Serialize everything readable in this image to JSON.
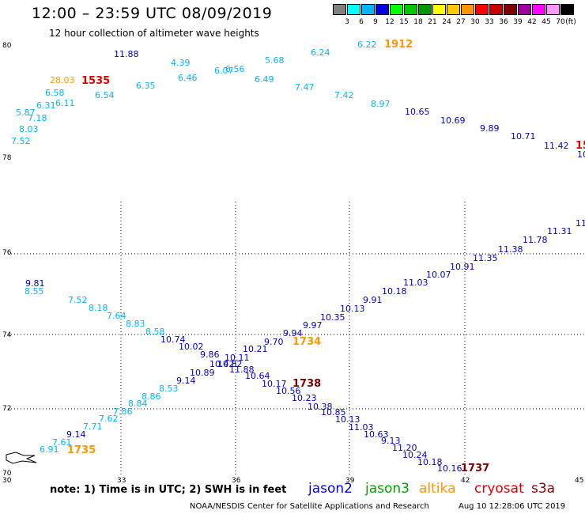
{
  "header": {
    "title": "12:00 – 23:59 UTC 08/09/2019",
    "subtitle": "12 hour collection of altimeter wave heights"
  },
  "legend": {
    "unit": "(ft)",
    "swatches": [
      {
        "label": "3",
        "color": "#808080"
      },
      {
        "label": "6",
        "color": "#00ffff"
      },
      {
        "label": "9",
        "color": "#00b4ff"
      },
      {
        "label": "12",
        "color": "#0000e0"
      },
      {
        "label": "15",
        "color": "#00ff00"
      },
      {
        "label": "18",
        "color": "#00c800"
      },
      {
        "label": "21",
        "color": "#009600"
      },
      {
        "label": "24",
        "color": "#ffff00"
      },
      {
        "label": "27",
        "color": "#ffc800"
      },
      {
        "label": "30",
        "color": "#ff9600"
      },
      {
        "label": "33",
        "color": "#ff0000"
      },
      {
        "label": "36",
        "color": "#c80000"
      },
      {
        "label": "39",
        "color": "#800000"
      },
      {
        "label": "42",
        "color": "#a000a0"
      },
      {
        "label": "45",
        "color": "#ff00ff"
      },
      {
        "label": "70",
        "color": "#ff96ff"
      },
      {
        "label": "",
        "color": "#000000"
      }
    ]
  },
  "axes": {
    "upper_panel": {
      "lat_labels": [
        {
          "value": "80"
        },
        {
          "value": "78"
        }
      ]
    },
    "lower_panel": {
      "lat_labels": [
        "76",
        "74",
        "72",
        "70"
      ],
      "lon_labels": [
        "30",
        "33",
        "36",
        "39",
        "42",
        "45"
      ]
    }
  },
  "colors": {
    "cyan_values": "#00b4ff",
    "blue_values": "#0000c8",
    "time_orange": "#ff9600",
    "time_red": "#e00000",
    "time_darkred": "#800000",
    "jason2": "#0000e0",
    "jason3": "#00a000",
    "altika": "#ff9600",
    "cryosat": "#e00000",
    "s3a": "#800000"
  },
  "upper_track": [
    {
      "t": "7.52",
      "c": "cyan"
    },
    {
      "t": "8.03",
      "c": "cyan"
    },
    {
      "t": "5.87",
      "c": "cyan"
    },
    {
      "t": "7.18",
      "c": "cyan"
    },
    {
      "t": "6.31",
      "c": "cyan"
    },
    {
      "t": "6.58",
      "c": "cyan"
    },
    {
      "t": "6.11",
      "c": "cyan"
    },
    {
      "t": "28.03",
      "c": "orange"
    },
    {
      "t": "1535",
      "c": "timered"
    },
    {
      "t": "6.54",
      "c": "cyan"
    },
    {
      "t": "11.88",
      "c": "blue"
    },
    {
      "t": "6.35",
      "c": "cyan"
    },
    {
      "t": "4.39",
      "c": "cyan"
    },
    {
      "t": "6.46",
      "c": "cyan"
    },
    {
      "t": "6.07",
      "c": "cyan"
    },
    {
      "t": "6.56",
      "c": "cyan"
    },
    {
      "t": "5.68",
      "c": "cyan"
    },
    {
      "t": "6.49",
      "c": "cyan"
    },
    {
      "t": "6.24",
      "c": "cyan"
    },
    {
      "t": "7.47",
      "c": "cyan"
    },
    {
      "t": "6.22",
      "c": "cyan"
    },
    {
      "t": "1912",
      "c": "timeorange"
    },
    {
      "t": "7.42",
      "c": "cyan"
    },
    {
      "t": "8.97",
      "c": "cyan"
    },
    {
      "t": "10.65",
      "c": "blue"
    },
    {
      "t": "10.69",
      "c": "blue"
    },
    {
      "t": "9.89",
      "c": "blue"
    },
    {
      "t": "10.71",
      "c": "blue"
    },
    {
      "t": "11.42",
      "c": "blue"
    },
    {
      "t": "15",
      "c": "timered"
    },
    {
      "t": "10",
      "c": "blue"
    }
  ],
  "lower_tracks": [
    {
      "t": "9.81",
      "c": "blue"
    },
    {
      "t": "8.55",
      "c": "cyan"
    },
    {
      "t": "7.52",
      "c": "cyan"
    },
    {
      "t": "8.18",
      "c": "cyan"
    },
    {
      "t": "7.64",
      "c": "cyan"
    },
    {
      "t": "8.83",
      "c": "cyan"
    },
    {
      "t": "8.58",
      "c": "cyan"
    },
    {
      "t": "10.74",
      "c": "blue"
    },
    {
      "t": "10.02",
      "c": "blue"
    },
    {
      "t": "9.86",
      "c": "blue"
    },
    {
      "t": "10.11",
      "c": "blue"
    },
    {
      "t": "10.42",
      "c": "blue"
    },
    {
      "t": "10.82",
      "c": "blue"
    },
    {
      "t": "11.88",
      "c": "blue"
    },
    {
      "t": "10.21",
      "c": "blue"
    },
    {
      "t": "9.70",
      "c": "blue"
    },
    {
      "t": "9.94",
      "c": "blue"
    },
    {
      "t": "1734",
      "c": "timeorange"
    },
    {
      "t": "9.97",
      "c": "blue"
    },
    {
      "t": "10.35",
      "c": "blue"
    },
    {
      "t": "10.13",
      "c": "blue"
    },
    {
      "t": "9.91",
      "c": "blue"
    },
    {
      "t": "10.18",
      "c": "blue"
    },
    {
      "t": "11.03",
      "c": "blue"
    },
    {
      "t": "10.07",
      "c": "blue"
    },
    {
      "t": "10.91",
      "c": "blue"
    },
    {
      "t": "11.35",
      "c": "blue"
    },
    {
      "t": "11.38",
      "c": "blue"
    },
    {
      "t": "11.78",
      "c": "blue"
    },
    {
      "t": "11.31",
      "c": "blue"
    },
    {
      "t": "11",
      "c": "blue"
    },
    {
      "t": "6.91",
      "c": "cyan"
    },
    {
      "t": "7.61",
      "c": "cyan"
    },
    {
      "t": "1735",
      "c": "timeorange"
    },
    {
      "t": "9.14",
      "c": "blue"
    },
    {
      "t": "7.71",
      "c": "cyan"
    },
    {
      "t": "7.62",
      "c": "cyan"
    },
    {
      "t": "7.86",
      "c": "cyan"
    },
    {
      "t": "8.84",
      "c": "cyan"
    },
    {
      "t": "8.86",
      "c": "cyan"
    },
    {
      "t": "8.53",
      "c": "cyan"
    },
    {
      "t": "9.14",
      "c": "blue"
    },
    {
      "t": "10.89",
      "c": "blue"
    },
    {
      "t": "10.64",
      "c": "blue"
    },
    {
      "t": "10.17",
      "c": "blue"
    },
    {
      "t": "1738",
      "c": "timedarkred"
    },
    {
      "t": "10.56",
      "c": "blue"
    },
    {
      "t": "10.23",
      "c": "blue"
    },
    {
      "t": "10.38",
      "c": "blue"
    },
    {
      "t": "10.85",
      "c": "blue"
    },
    {
      "t": "10.13",
      "c": "blue"
    },
    {
      "t": "11.03",
      "c": "blue"
    },
    {
      "t": "10.63",
      "c": "blue"
    },
    {
      "t": "9.13",
      "c": "blue"
    },
    {
      "t": "11.20",
      "c": "blue"
    },
    {
      "t": "10.24",
      "c": "blue"
    },
    {
      "t": "10.18",
      "c": "blue"
    },
    {
      "t": "10.16",
      "c": "blue"
    },
    {
      "t": "1737",
      "c": "timedarkred"
    }
  ],
  "footer": {
    "note": "note:  1) Time is in UTC;  2) SWH is in feet",
    "satellites": [
      "jason2",
      "jason3",
      "altika",
      "cryosat",
      "s3a"
    ],
    "credit": "NOAA/NESDIS Center for Satellite Applications and Research",
    "timestamp": "Aug 10 12:28:06 UTC 2019"
  }
}
